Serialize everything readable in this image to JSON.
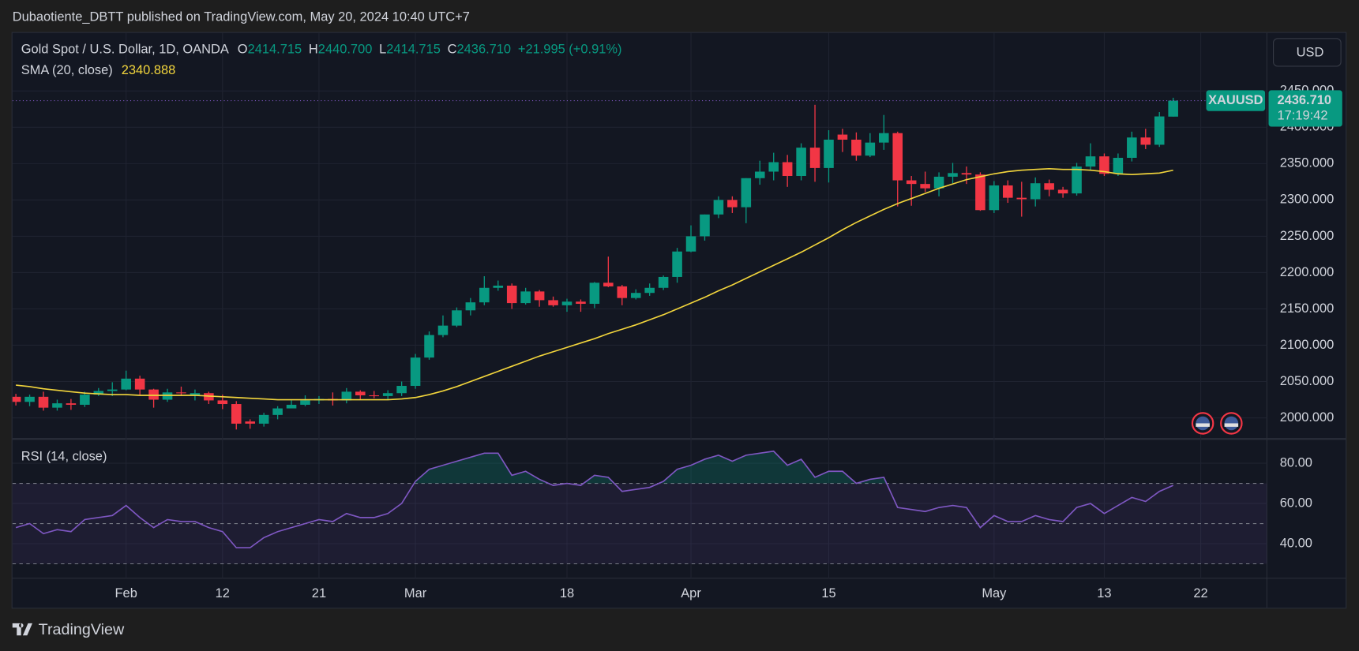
{
  "header": "Dubaotiente_DBTT published on TradingView.com, May 20, 2024 10:40 UTC+7",
  "footer": "TradingView",
  "chart_data": [
    {
      "type": "candlestick",
      "title": "Gold Spot / U.S. Dollar, 1D, OANDA",
      "ohlc_legend": [
        {
          "key": "O",
          "value": "2414.715"
        },
        {
          "key": "H",
          "value": "2440.700"
        },
        {
          "key": "L",
          "value": "2414.715"
        },
        {
          "key": "C",
          "value": "2436.710"
        }
      ],
      "change": "+21.995 (+0.91%)",
      "symbol": "XAUUSD",
      "currency": "USD",
      "last_price_label": "2436.710",
      "countdown": "17:19:42",
      "up_color": "#089981",
      "down_color": "#f23645",
      "open": [
        2029,
        2022,
        2029,
        2014,
        2020,
        2018,
        2032,
        2037,
        2039,
        2054,
        2039,
        2025,
        2035,
        2031,
        2034,
        2024,
        2019,
        1995,
        1992,
        2004,
        2013,
        2018,
        2024,
        2026,
        2024,
        2036,
        2031,
        2030,
        2034,
        2044,
        2083,
        2114,
        2127,
        2148,
        2159,
        2179,
        2182,
        2158,
        2174,
        2162,
        2155,
        2160,
        2157,
        2186,
        2181,
        2165,
        2172,
        2179,
        2194,
        2229,
        2250,
        2280,
        2300,
        2290,
        2330,
        2339,
        2352,
        2333,
        2372,
        2344,
        2390,
        2383,
        2361,
        2379,
        2392,
        2327,
        2322,
        2316,
        2332,
        2337,
        2335,
        2286,
        2320,
        2303,
        2301,
        2323,
        2314,
        2309,
        2346,
        2360,
        2336,
        2358,
        2386,
        2376,
        2414.715
      ],
      "high": [
        2033,
        2032,
        2036,
        2025,
        2026,
        2036,
        2041,
        2049,
        2065,
        2058,
        2040,
        2040,
        2043,
        2039,
        2036,
        2032,
        2023,
        1998,
        2007,
        2016,
        2024,
        2031,
        2030,
        2035,
        2041,
        2038,
        2037,
        2038,
        2050,
        2088,
        2119,
        2141,
        2152,
        2165,
        2195,
        2189,
        2185,
        2179,
        2176,
        2167,
        2164,
        2163,
        2187,
        2222,
        2183,
        2177,
        2185,
        2196,
        2234,
        2265,
        2280,
        2305,
        2305,
        2330,
        2354,
        2365,
        2362,
        2378,
        2431,
        2396,
        2398,
        2393,
        2392,
        2417,
        2394,
        2333,
        2339,
        2338,
        2351,
        2346,
        2338,
        2326,
        2327,
        2325,
        2331,
        2328,
        2318,
        2351,
        2378,
        2364,
        2364,
        2394,
        2398,
        2421,
        2440.7
      ],
      "low": [
        2017,
        2016,
        2010,
        2010,
        2011,
        2015,
        2030,
        2030,
        2038,
        2031,
        2014,
        2022,
        2030,
        2024,
        2019,
        2012,
        1984,
        1985,
        1988,
        1998,
        2013,
        2016,
        2019,
        2017,
        2020,
        2025,
        2027,
        2025,
        2030,
        2040,
        2080,
        2111,
        2125,
        2141,
        2155,
        2175,
        2150,
        2156,
        2153,
        2153,
        2146,
        2146,
        2151,
        2180,
        2155,
        2163,
        2168,
        2176,
        2186,
        2228,
        2244,
        2275,
        2282,
        2268,
        2321,
        2327,
        2318,
        2327,
        2325,
        2324,
        2366,
        2354,
        2359,
        2369,
        2291,
        2292,
        2311,
        2305,
        2323,
        2322,
        2285,
        2282,
        2296,
        2277,
        2291,
        2305,
        2303,
        2306,
        2340,
        2333,
        2333,
        2353,
        2370,
        2373,
        2414.715
      ],
      "close": [
        2022,
        2029,
        2014,
        2020,
        2018,
        2032,
        2037,
        2039,
        2054,
        2039,
        2025,
        2035,
        2034,
        2034,
        2024,
        2019,
        1992,
        1992,
        2004,
        2013,
        2018,
        2024,
        2026,
        2024,
        2036,
        2031,
        2030,
        2034,
        2044,
        2083,
        2114,
        2127,
        2148,
        2159,
        2179,
        2182,
        2158,
        2174,
        2162,
        2155,
        2160,
        2157,
        2186,
        2181,
        2165,
        2172,
        2179,
        2194,
        2229,
        2250,
        2280,
        2300,
        2290,
        2330,
        2339,
        2352,
        2333,
        2372,
        2344,
        2383,
        2383,
        2361,
        2379,
        2392,
        2327,
        2322,
        2316,
        2332,
        2337,
        2335,
        2286,
        2320,
        2303,
        2301,
        2323,
        2314,
        2309,
        2346,
        2360,
        2336,
        2358,
        2386,
        2376,
        2415,
        2436.71
      ],
      "sma": {
        "name": "SMA (20, close)",
        "color": "#f2d53c",
        "values": [
          2045,
          2043,
          2040,
          2038,
          2036,
          2034,
          2033,
          2032,
          2032,
          2031,
          2031,
          2031,
          2031,
          2031,
          2030,
          2029,
          2028,
          2027,
          2026,
          2025,
          2025,
          2025,
          2025,
          2025,
          2025,
          2025,
          2025,
          2025,
          2026,
          2028,
          2032,
          2037,
          2043,
          2050,
          2057,
          2064,
          2071,
          2078,
          2085,
          2091,
          2097,
          2103,
          2109,
          2116,
          2122,
          2128,
          2135,
          2142,
          2150,
          2158,
          2166,
          2175,
          2183,
          2192,
          2201,
          2210,
          2219,
          2228,
          2238,
          2248,
          2259,
          2269,
          2278,
          2287,
          2295,
          2302,
          2309,
          2316,
          2322,
          2328,
          2332,
          2336,
          2339,
          2341,
          2342,
          2343,
          2342,
          2342,
          2341,
          2339,
          2336,
          2335,
          2336,
          2337,
          2340.888
        ]
      },
      "xlim": [
        -0.25,
        90.8
      ],
      "xticks": [
        {
          "value": 8,
          "label": "Feb"
        },
        {
          "value": 15,
          "label": "12"
        },
        {
          "value": 22,
          "label": "21"
        },
        {
          "value": 29,
          "label": "Mar"
        },
        {
          "value": 40,
          "label": "18"
        },
        {
          "value": 49,
          "label": "Apr"
        },
        {
          "value": 59,
          "label": "15"
        },
        {
          "value": 71,
          "label": "May"
        },
        {
          "value": 79,
          "label": "13"
        },
        {
          "value": 86,
          "label": "22"
        }
      ],
      "ylim": [
        1971,
        2530
      ],
      "yticks": [
        {
          "value": 2000,
          "label": "2000.000"
        },
        {
          "value": 2050,
          "label": "2050.000"
        },
        {
          "value": 2100,
          "label": "2100.000"
        },
        {
          "value": 2150,
          "label": "2150.000"
        },
        {
          "value": 2200,
          "label": "2200.000"
        },
        {
          "value": 2250,
          "label": "2250.000"
        },
        {
          "value": 2300,
          "label": "2300.000"
        },
        {
          "value": 2350,
          "label": "2350.000"
        },
        {
          "value": 2400,
          "label": "2400.000"
        },
        {
          "value": 2450,
          "label": "2450.000"
        }
      ],
      "grid": true
    },
    {
      "type": "line",
      "title": "RSI (14, close)",
      "color": "#7e57c2",
      "values": [
        48,
        50,
        45,
        47,
        46,
        52,
        53,
        54,
        59,
        53,
        48,
        52,
        51,
        51,
        48,
        46,
        38,
        38,
        43,
        46,
        48,
        50,
        52,
        51,
        55,
        53,
        53,
        55,
        60,
        71,
        77,
        79,
        81,
        83,
        85,
        85,
        74,
        76,
        72,
        69,
        70,
        69,
        74,
        73,
        66,
        67,
        68,
        71,
        77,
        79,
        82,
        84,
        81,
        84,
        85,
        86,
        79,
        82,
        73,
        76,
        76,
        70,
        72,
        73,
        58,
        57,
        56,
        58,
        59,
        58,
        48,
        54,
        51,
        51,
        54,
        52,
        51,
        58,
        60,
        55,
        59,
        63,
        61,
        66,
        69
      ],
      "ylim": [
        22.8,
        92.1
      ],
      "yticks": [
        {
          "value": 40,
          "label": "40.00"
        },
        {
          "value": 60,
          "label": "60.00"
        },
        {
          "value": 80,
          "label": "80.00"
        }
      ],
      "bands": [
        30,
        50,
        70
      ],
      "grid": true
    }
  ]
}
